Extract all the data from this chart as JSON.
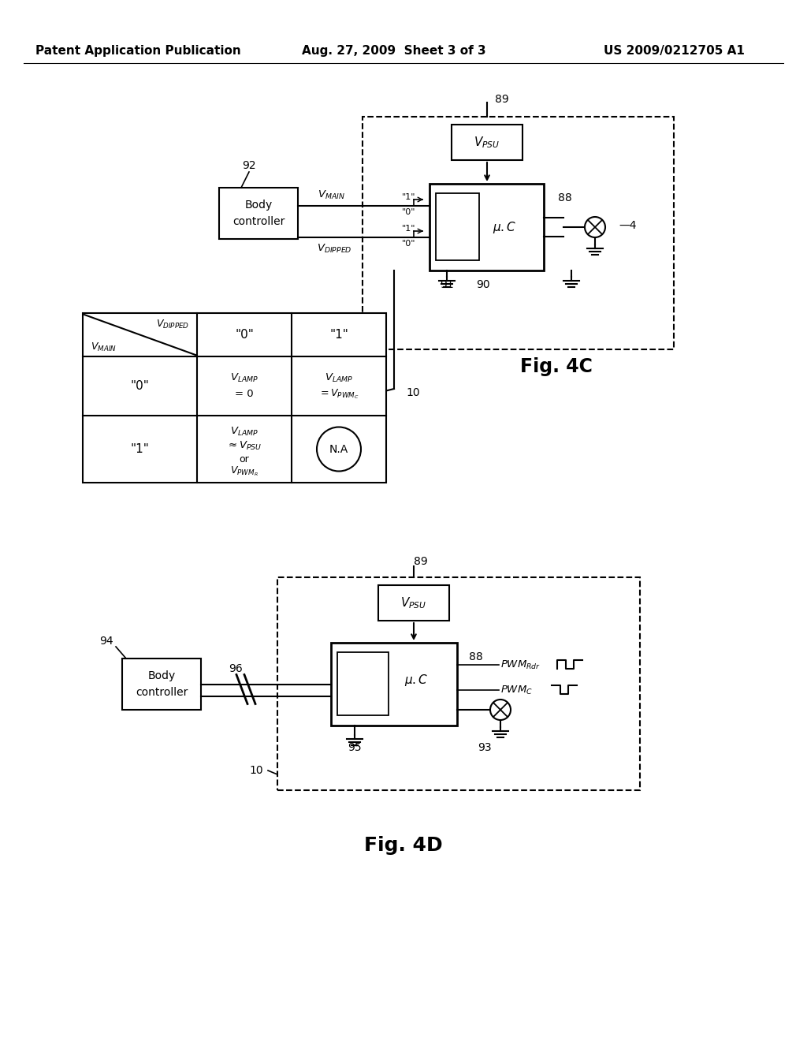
{
  "bg_color": "#ffffff",
  "header_left": "Patent Application Publication",
  "header_center": "Aug. 27, 2009  Sheet 3 of 3",
  "header_right": "US 2009/0212705 A1",
  "fig4c_label": "Fig. 4C",
  "fig4d_label": "Fig. 4D"
}
